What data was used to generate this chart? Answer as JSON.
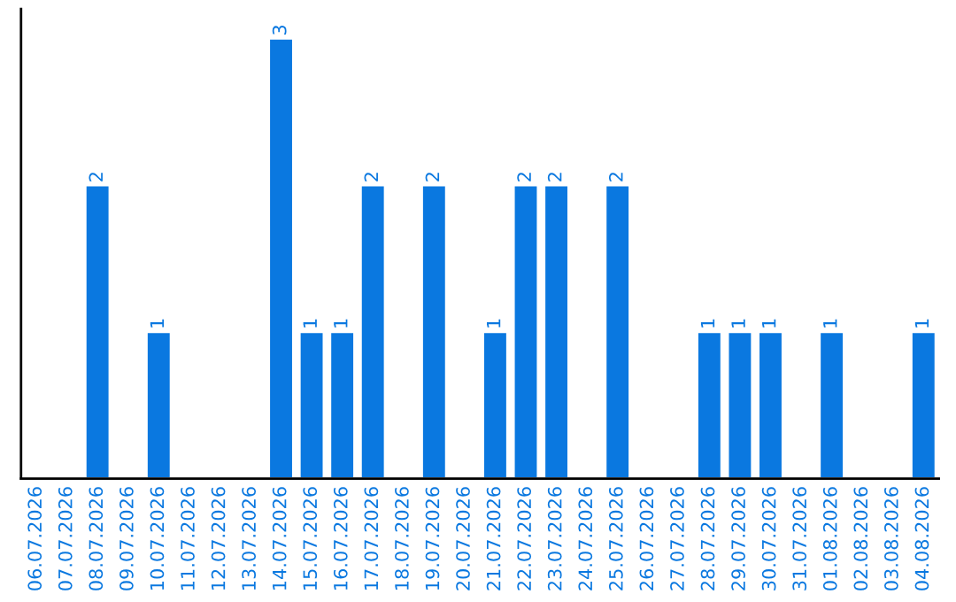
{
  "chart_data": {
    "type": "bar",
    "categories": [
      "06.07.2026",
      "07.07.2026",
      "08.07.2026",
      "09.07.2026",
      "10.07.2026",
      "11.07.2026",
      "12.07.2026",
      "13.07.2026",
      "14.07.2026",
      "15.07.2026",
      "16.07.2026",
      "17.07.2026",
      "18.07.2026",
      "19.07.2026",
      "20.07.2026",
      "21.07.2026",
      "22.07.2026",
      "23.07.2026",
      "24.07.2026",
      "25.07.2026",
      "26.07.2026",
      "27.07.2026",
      "28.07.2026",
      "29.07.2026",
      "30.07.2026",
      "31.07.2026",
      "01.08.2026",
      "02.08.2026",
      "03.08.2026",
      "04.08.2026"
    ],
    "values": [
      null,
      null,
      2,
      null,
      1,
      null,
      null,
      null,
      3,
      1,
      1,
      2,
      null,
      2,
      null,
      1,
      2,
      2,
      null,
      2,
      null,
      null,
      1,
      1,
      1,
      null,
      1,
      null,
      null,
      1
    ],
    "value_labels": [
      null,
      null,
      "2",
      null,
      "1",
      null,
      null,
      null,
      "3",
      "1",
      "1",
      "2",
      null,
      "2",
      null,
      "1",
      "2",
      "2",
      null,
      "2",
      null,
      null,
      "1",
      "1",
      "1",
      null,
      "1",
      null,
      null,
      "1"
    ],
    "color": "#0a78e0",
    "ylim": [
      0,
      3.2
    ],
    "tick_labels": "x",
    "grid": false,
    "legend": false
  }
}
